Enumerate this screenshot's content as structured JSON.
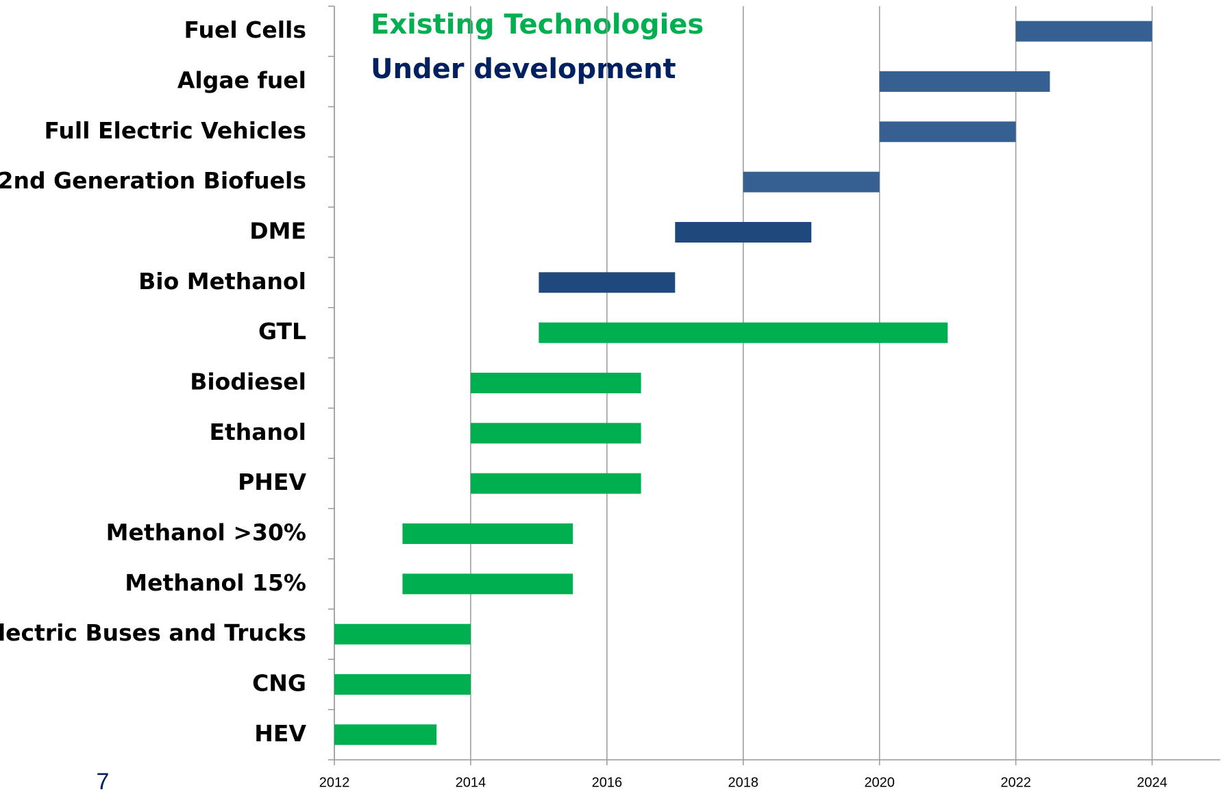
{
  "chart_data": {
    "type": "gantt",
    "legend": [
      {
        "label": "Existing Technologies",
        "color": "#00b050"
      },
      {
        "label": "Under development",
        "color": "#002060"
      }
    ],
    "page_number": "7",
    "categories": [
      "Fuel Cells",
      "Algae fuel",
      "Full Electric Vehicles",
      "2nd Generation Biofuels",
      "DME",
      "Bio Methanol",
      "GTL",
      "Biodiesel",
      "Ethanol",
      "PHEV",
      "Methanol >30%",
      "Methanol 15%",
      "Electric Buses and Trucks",
      "CNG",
      "HEV"
    ],
    "starts": [
      2022,
      2020,
      2020,
      2018,
      2017,
      2015,
      2015,
      2014,
      2014,
      2014,
      2013,
      2013,
      2012,
      2012,
      2012
    ],
    "ends": [
      2024,
      2022.5,
      2022,
      2020,
      2019,
      2017,
      2021,
      2016.5,
      2016.5,
      2016.5,
      2015.5,
      2015.5,
      2014,
      2014,
      2013.5
    ],
    "colors": [
      "#376092",
      "#376092",
      "#376092",
      "#376092",
      "#1f497d",
      "#1f497d",
      "#00b050",
      "#00b050",
      "#00b050",
      "#00b050",
      "#00b050",
      "#00b050",
      "#00b050",
      "#00b050",
      "#00b050"
    ],
    "xlim": [
      2012,
      2025
    ],
    "xticks": [
      2012,
      2014,
      2016,
      2018,
      2020,
      2022,
      2024
    ],
    "grid": true
  }
}
